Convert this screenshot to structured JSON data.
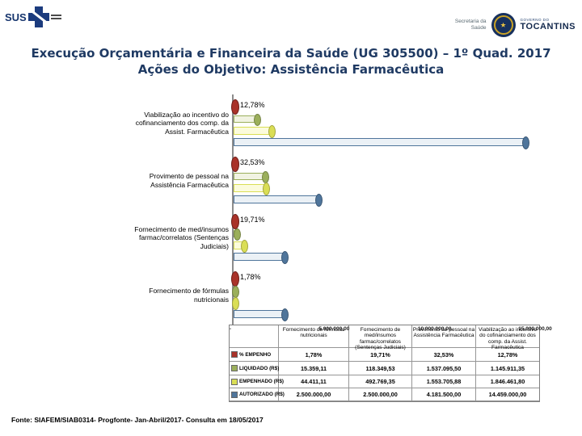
{
  "header": {
    "sus_text": "SUS",
    "secretaria_label_line1": "Secretaria da",
    "secretaria_label_line2": "Saúde",
    "governo_label": "GOVERNO DO",
    "state_label": "TOCANTINS"
  },
  "title": {
    "line1": "Execução Orçamentária e Financeira da Saúde (UG 305500) – 1º Quad. 2017",
    "line2": "Ações do Objetivo: Assistência Farmacêutica"
  },
  "colors": {
    "title_text": "#1f3a63",
    "axis_gray": "#8c8c8c"
  },
  "chart_data": {
    "type": "bar",
    "orientation": "horizontal",
    "title": "",
    "xlabel": "",
    "ylabel": "",
    "xlim": [
      0,
      15000000
    ],
    "x_tick_values": [
      0,
      5000000,
      10000000,
      15000000
    ],
    "x_tick_labels": [
      "-",
      "5.000.000,00",
      "10.000.000,00",
      "15.000.000,00"
    ],
    "grid": false,
    "legend_position": "table-left",
    "categories": [
      "Viabilização ao incentivo do cofinanciamento dos comp. da Assist. Farmacêutica",
      "Provimento de pessoal na Assistência Farmacêutica",
      "Fornecimento de med/insumos farmac/correlatos (Sentenças Judiciais)",
      "Fornecimento de fórmulas nutricionais"
    ],
    "data_labels": [
      "12,78%",
      "32,53%",
      "19,71%",
      "1,78%"
    ],
    "series": [
      {
        "name": "% EMPENHO",
        "color": "#a93229",
        "body": "#f5e0de",
        "values": [
          12.78,
          32.53,
          19.71,
          1.78
        ]
      },
      {
        "name": "LIQUIDADO (R$)",
        "color": "#9baf5b",
        "body": "#f1f3e2",
        "values": [
          1145911.35,
          1537095.5,
          118349.53,
          15359.11
        ]
      },
      {
        "name": "EMPENHADO (R$)",
        "color": "#dade55",
        "body": "#fbfbdc",
        "values": [
          1846461.8,
          1553705.88,
          492769.35,
          44411.11
        ]
      },
      {
        "name": "AUTORIZADO (R$)",
        "color": "#4f759b",
        "body": "#ebf1f6",
        "values": [
          14459000.0,
          4181500.0,
          2500000.0,
          2500000.0
        ]
      }
    ]
  },
  "table": {
    "columns": [
      "Fornecimento de fórmulas nutricionais",
      "Fornecimento de med/insumos farmac/correlatos (Sentenças Judiciais)",
      "Provimento de pessoal na Assistência Farmacêutica",
      "Viabilização ao incentivo do cofinanciamento dos comp. da Assist. Farmacêutica"
    ],
    "rows": [
      {
        "label": "% EMPENHO",
        "values": [
          "1,78%",
          "19,71%",
          "32,53%",
          "12,78%"
        ]
      },
      {
        "label": "LIQUIDADO (R$)",
        "values": [
          "15.359,11",
          "118.349,53",
          "1.537.095,50",
          "1.145.911,35"
        ]
      },
      {
        "label": "EMPENHADO (R$)",
        "values": [
          "44.411,11",
          "492.769,35",
          "1.553.705,88",
          "1.846.461,80"
        ]
      },
      {
        "label": "AUTORIZADO (R$)",
        "values": [
          "2.500.000,00",
          "2.500.000,00",
          "4.181.500,00",
          "14.459.000,00"
        ]
      }
    ]
  },
  "footer": {
    "source": "Fonte: SIAFEM/SIAB0314- Progfonte- Jan-Abril/2017- Consulta em 18/05/2017"
  }
}
